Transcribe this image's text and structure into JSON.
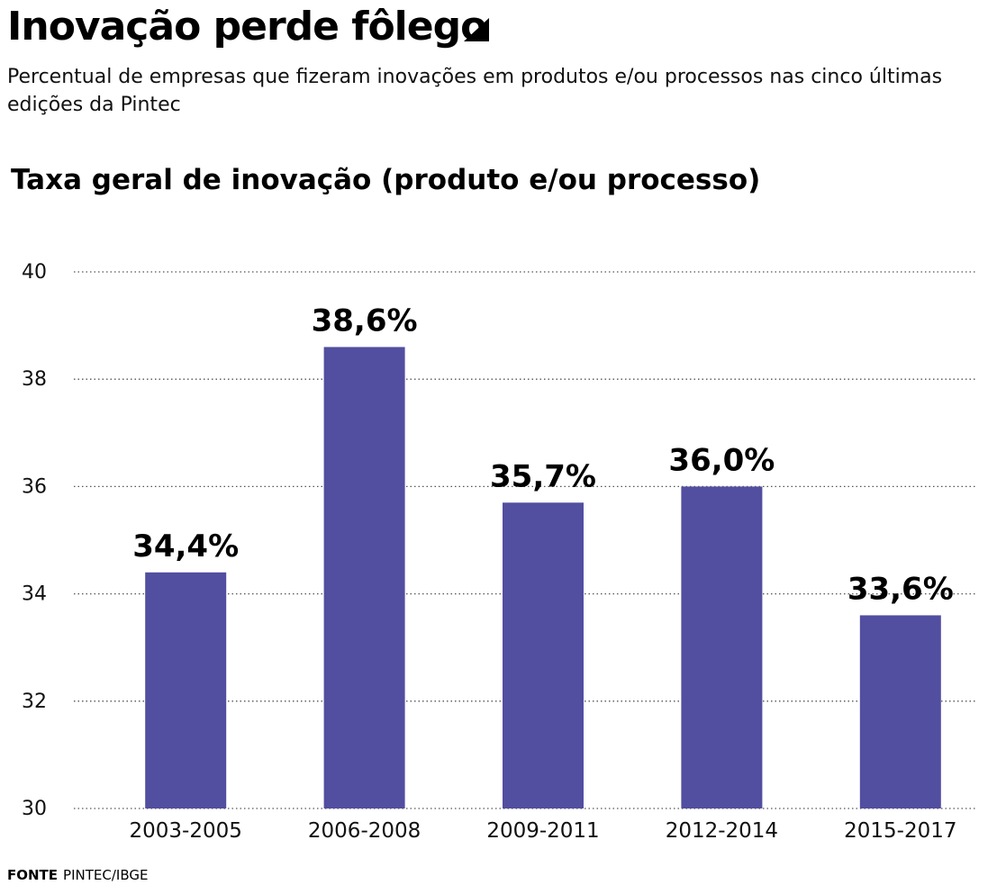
{
  "header": {
    "title": "Inovação perde fôlego",
    "subtitle": "Percentual de empresas que fizeram inovações em produtos e/ou processos nas cinco últimas edições da Pintec"
  },
  "chart_data": {
    "type": "bar",
    "title": "Taxa geral de inovação (produto e/ou processo)",
    "categories": [
      "2003-2005",
      "2006-2008",
      "2009-2011",
      "2012-2014",
      "2015-2017"
    ],
    "values": [
      34.4,
      38.6,
      35.7,
      36.0,
      33.6
    ],
    "data_labels": [
      "34,4%",
      "38,6%",
      "35,7%",
      "36,0%",
      "33,6%"
    ],
    "ylim": [
      30,
      40
    ],
    "yticks": [
      30,
      32,
      34,
      36,
      38,
      40
    ],
    "grid": "dotted horizontal",
    "bar_color": "#524ea0"
  },
  "footer": {
    "source_label": "FONTE",
    "source_text": "PINTEC/IBGE"
  }
}
